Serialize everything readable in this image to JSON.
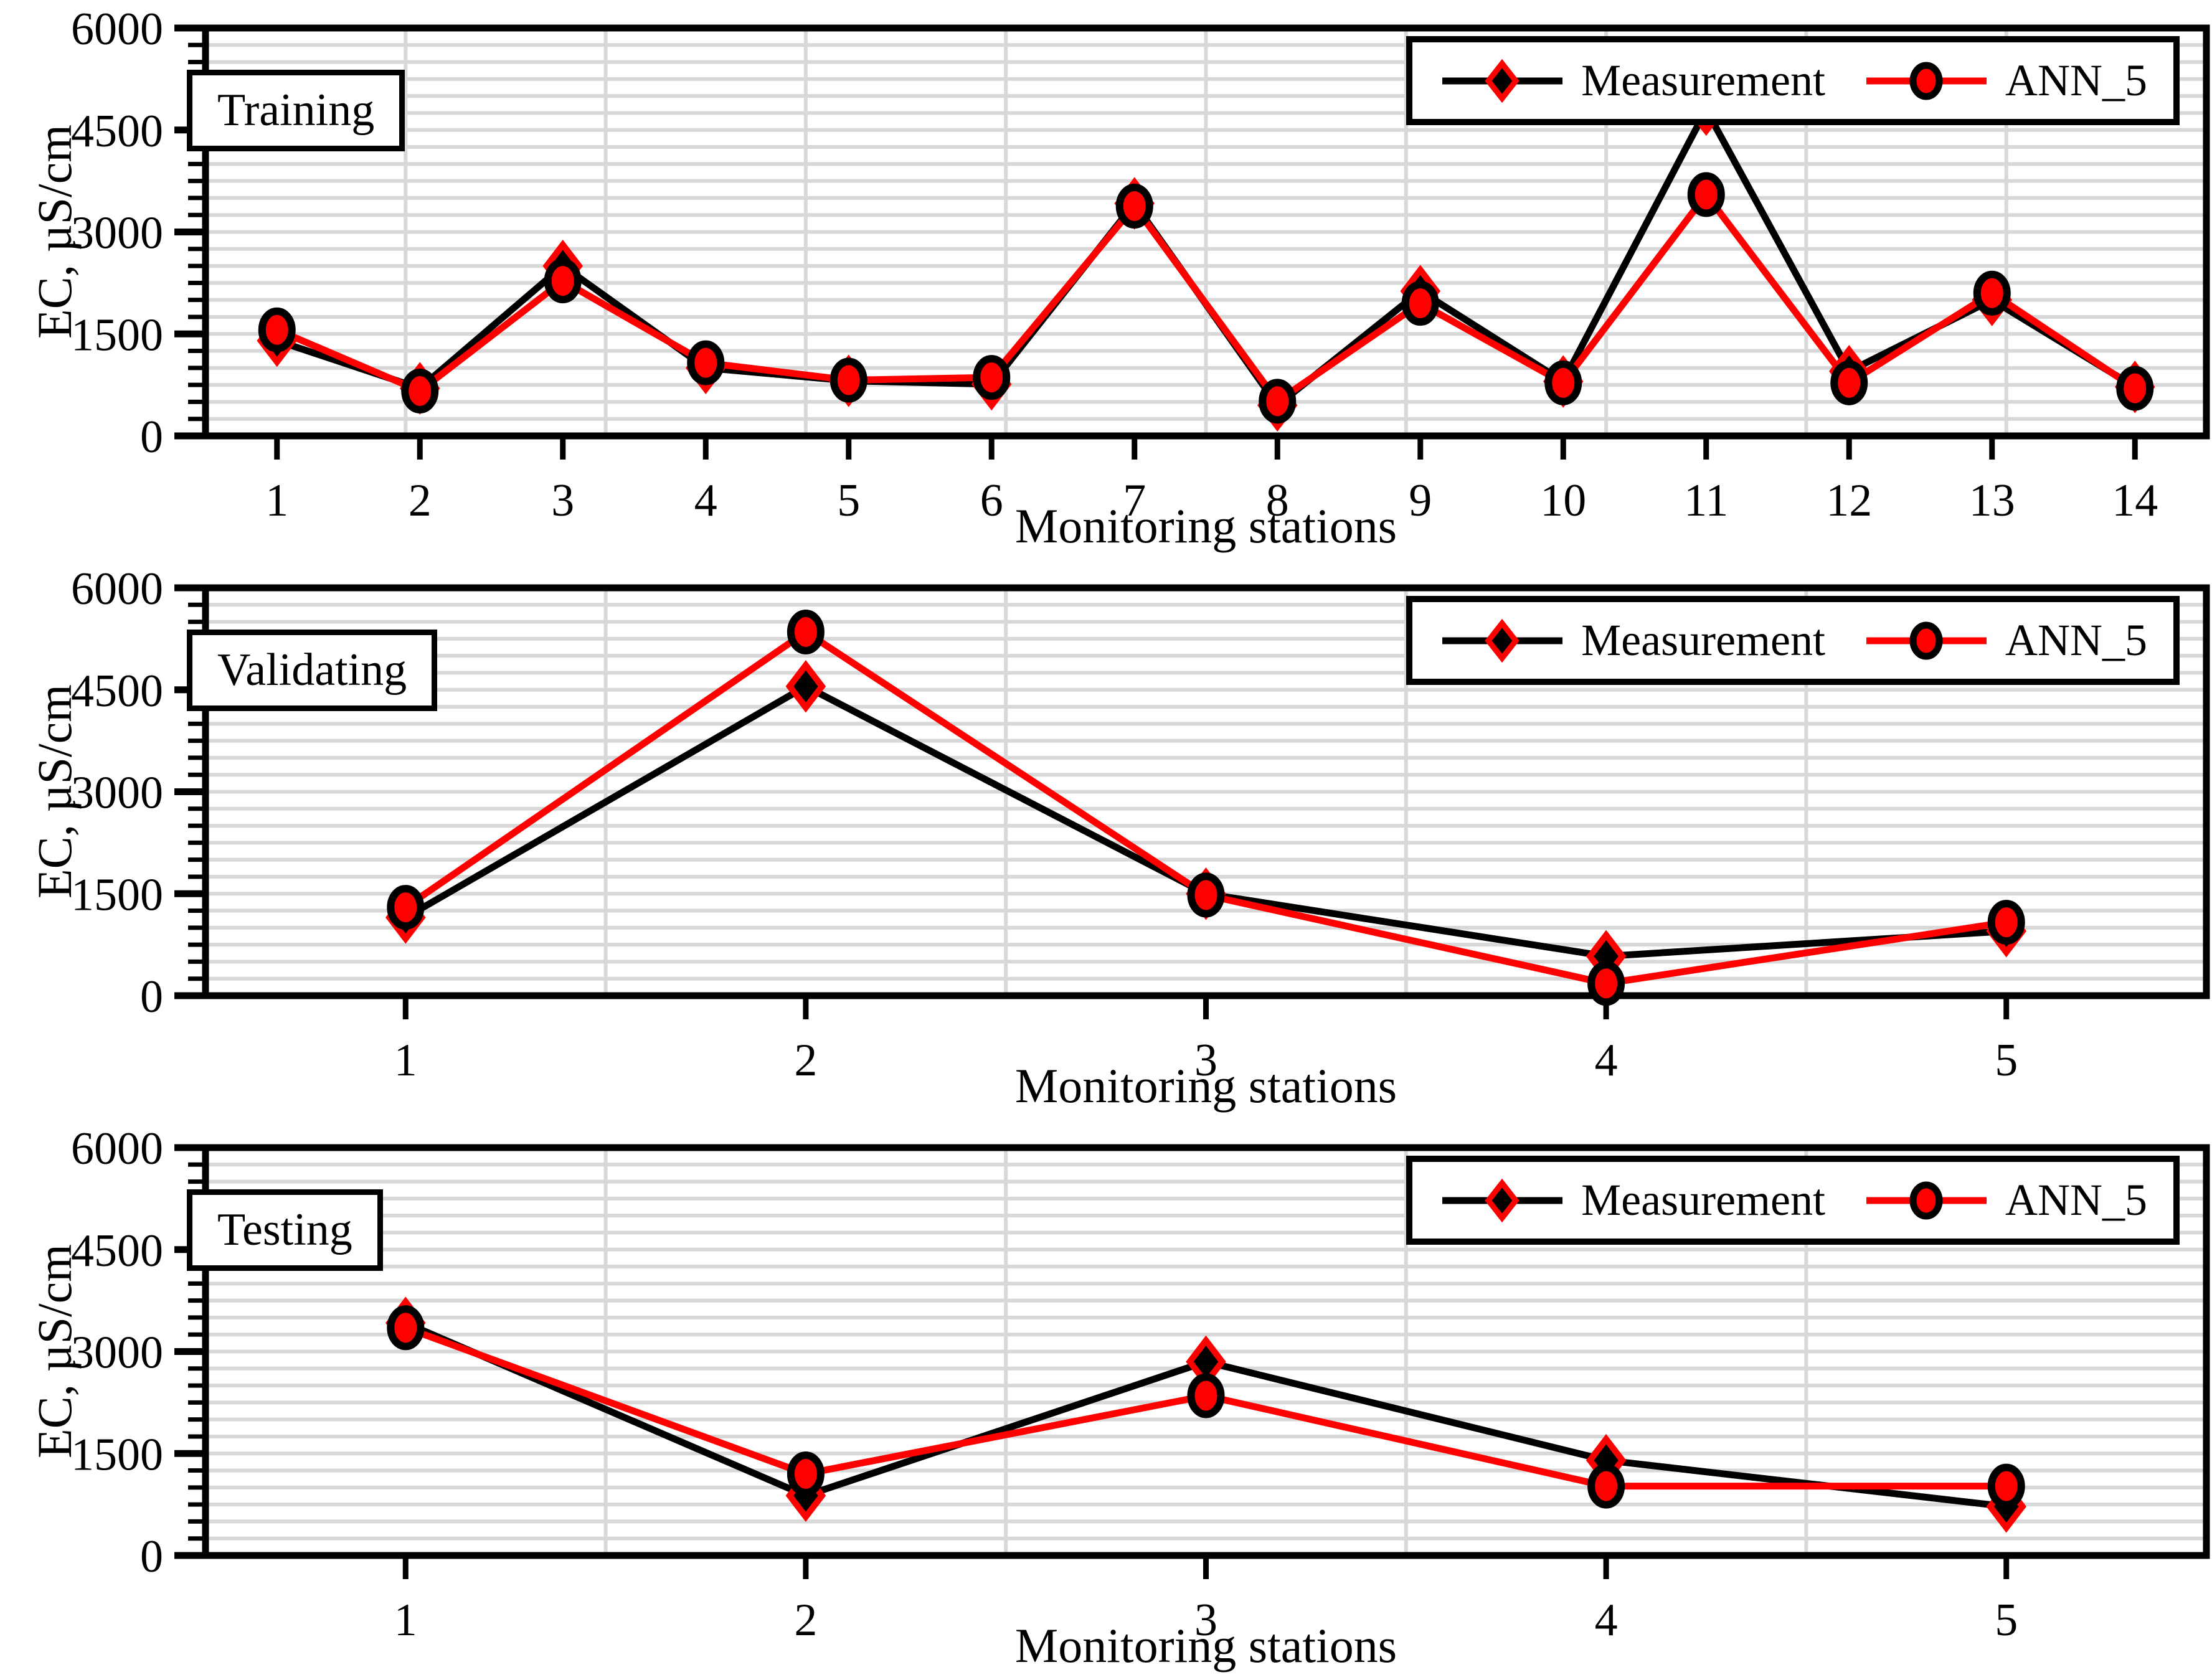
{
  "figure": {
    "kind": "three-panel line chart",
    "background": "#ffffff"
  },
  "axes": {
    "ylabel": "EC, µS/cm",
    "xlabel": "Monitoring stations",
    "ylim": [
      0,
      6000
    ],
    "yticks": [
      0,
      1500,
      3000,
      4500,
      6000
    ],
    "y_minor_step": 250,
    "grid": "on"
  },
  "legend": {
    "position": "top-right",
    "measurement_label": "Measurement",
    "ann_label": "ANN_5"
  },
  "colors": {
    "measurement": "#000000",
    "ann": "#ff0000",
    "grid": "#d8d8d8",
    "frame": "#000000",
    "background": "#ffffff"
  },
  "chart_data": [
    {
      "type": "line",
      "label": "Training",
      "xlabel": "Monitoring stations",
      "ylabel": "EC, µS/cm",
      "ylim": [
        0,
        6000
      ],
      "categories": [
        1,
        2,
        3,
        4,
        5,
        6,
        7,
        8,
        9,
        10,
        11,
        12,
        13,
        14
      ],
      "x_gridline_divisions": 10,
      "series": [
        {
          "name": "Measurement",
          "marker": "diamond",
          "values": [
            1400,
            700,
            2500,
            1000,
            810,
            760,
            3420,
            450,
            2130,
            800,
            4800,
            950,
            2000,
            720
          ]
        },
        {
          "name": "ANN_5",
          "marker": "circle",
          "values": [
            1560,
            660,
            2280,
            1075,
            820,
            860,
            3380,
            510,
            1950,
            780,
            3550,
            780,
            2100,
            700
          ]
        }
      ]
    },
    {
      "type": "line",
      "label": "Validating",
      "xlabel": "Monitoring stations",
      "ylabel": "EC, µS/cm",
      "ylim": [
        0,
        6000
      ],
      "categories": [
        1,
        2,
        3,
        4,
        5
      ],
      "x_gridline_divisions": 5,
      "series": [
        {
          "name": "Measurement",
          "marker": "diamond",
          "values": [
            1150,
            4550,
            1500,
            580,
            950
          ]
        },
        {
          "name": "ANN_5",
          "marker": "circle",
          "values": [
            1300,
            5350,
            1480,
            180,
            1080
          ]
        }
      ]
    },
    {
      "type": "line",
      "label": "Testing",
      "xlabel": "Monitoring stations",
      "ylabel": "EC, µS/cm",
      "ylim": [
        0,
        6000
      ],
      "categories": [
        1,
        2,
        3,
        4,
        5
      ],
      "x_gridline_divisions": 5,
      "series": [
        {
          "name": "Measurement",
          "marker": "diamond",
          "values": [
            3420,
            880,
            2850,
            1400,
            720
          ]
        },
        {
          "name": "ANN_5",
          "marker": "circle",
          "values": [
            3350,
            1200,
            2350,
            1020,
            1020
          ]
        }
      ]
    }
  ]
}
